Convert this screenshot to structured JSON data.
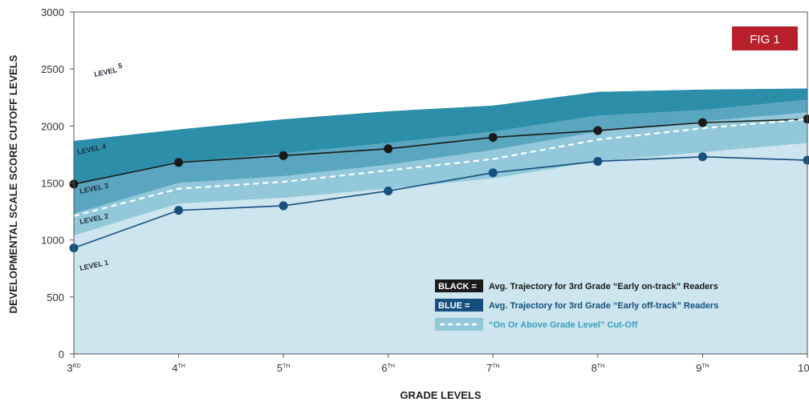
{
  "figure_label": "FIG 1",
  "chart_data": {
    "type": "area",
    "xlabel": "GRADE LEVELS",
    "ylabel": "DEVELOPMENTAL SCALE SCORE CUTOFF LEVELS",
    "ylim": [
      0,
      3000
    ],
    "yticks": [
      0,
      500,
      1000,
      1500,
      2000,
      2500,
      3000
    ],
    "categories": [
      {
        "base": "3",
        "sup": "RD"
      },
      {
        "base": "4",
        "sup": "TH"
      },
      {
        "base": "5",
        "sup": "TH"
      },
      {
        "base": "6",
        "sup": "TH"
      },
      {
        "base": "7",
        "sup": "TH"
      },
      {
        "base": "8",
        "sup": "TH"
      },
      {
        "base": "9",
        "sup": "TH"
      },
      {
        "base": "10",
        "sup": "TH"
      }
    ],
    "bands": [
      {
        "name": "LEVEL 1",
        "color": "#cce5ee",
        "upper": [
          1040,
          1320,
          1370,
          1450,
          1540,
          1690,
          1770,
          1850
        ]
      },
      {
        "name": "LEVEL 2",
        "color": "#92c8da",
        "upper": [
          1230,
          1500,
          1560,
          1660,
          1790,
          1950,
          2040,
          2120
        ]
      },
      {
        "name": "LEVEL 3",
        "color": "#5aa6c0",
        "upper": [
          1480,
          1680,
          1760,
          1850,
          1950,
          2090,
          2140,
          2230
        ]
      },
      {
        "name": "LEVEL 4",
        "color": "#2d8ea9",
        "upper": [
          1870,
          1970,
          2060,
          2130,
          2180,
          2300,
          2320,
          2330
        ]
      },
      {
        "name": "LEVEL 5",
        "color": "#ffffff",
        "upper": [
          3000,
          3000,
          3000,
          3000,
          3000,
          3000,
          3000,
          3000
        ]
      }
    ],
    "series": [
      {
        "name": "Avg. Trajectory for 3rd Grade “Early on-track” Readers",
        "color": "#1a1a1a",
        "values": [
          1490,
          1680,
          1740,
          1800,
          1900,
          1960,
          2030,
          2060
        ]
      },
      {
        "name": "Avg. Trajectory for 3rd Grade “Early off-track” Readers",
        "color": "#144f7e",
        "values": [
          930,
          1260,
          1300,
          1430,
          1590,
          1690,
          1730,
          1700
        ]
      },
      {
        "name": "“On Or Above Grade Level” Cut-Off",
        "color": "#ffffff",
        "dashed": true,
        "values": [
          1210,
          1450,
          1510,
          1610,
          1710,
          1880,
          1980,
          2060
        ]
      }
    ],
    "legend": [
      {
        "key": "BLACK =",
        "key_color": "#1a1a1a",
        "text": "Avg. Trajectory for 3rd Grade “Early on-track” Readers",
        "text_color": "#1a1a1a"
      },
      {
        "key": "BLUE =",
        "key_color": "#144f7e",
        "text": "Avg. Trajectory for 3rd Grade “Early off-track” Readers",
        "text_color": "#144f7e"
      },
      {
        "key": "",
        "key_color": "#92c8da",
        "text": "“On Or Above Grade Level” Cut-Off",
        "text_color": "#3a9dbf"
      }
    ],
    "level_labels": [
      {
        "text": "LEVEL 5",
        "sup": "5"
      },
      {
        "text": "LEVEL 4"
      },
      {
        "text": "LEVEL 3"
      },
      {
        "text": "LEVEL 2"
      },
      {
        "text": "LEVEL 1"
      }
    ],
    "accent_color": "#b8202c"
  }
}
